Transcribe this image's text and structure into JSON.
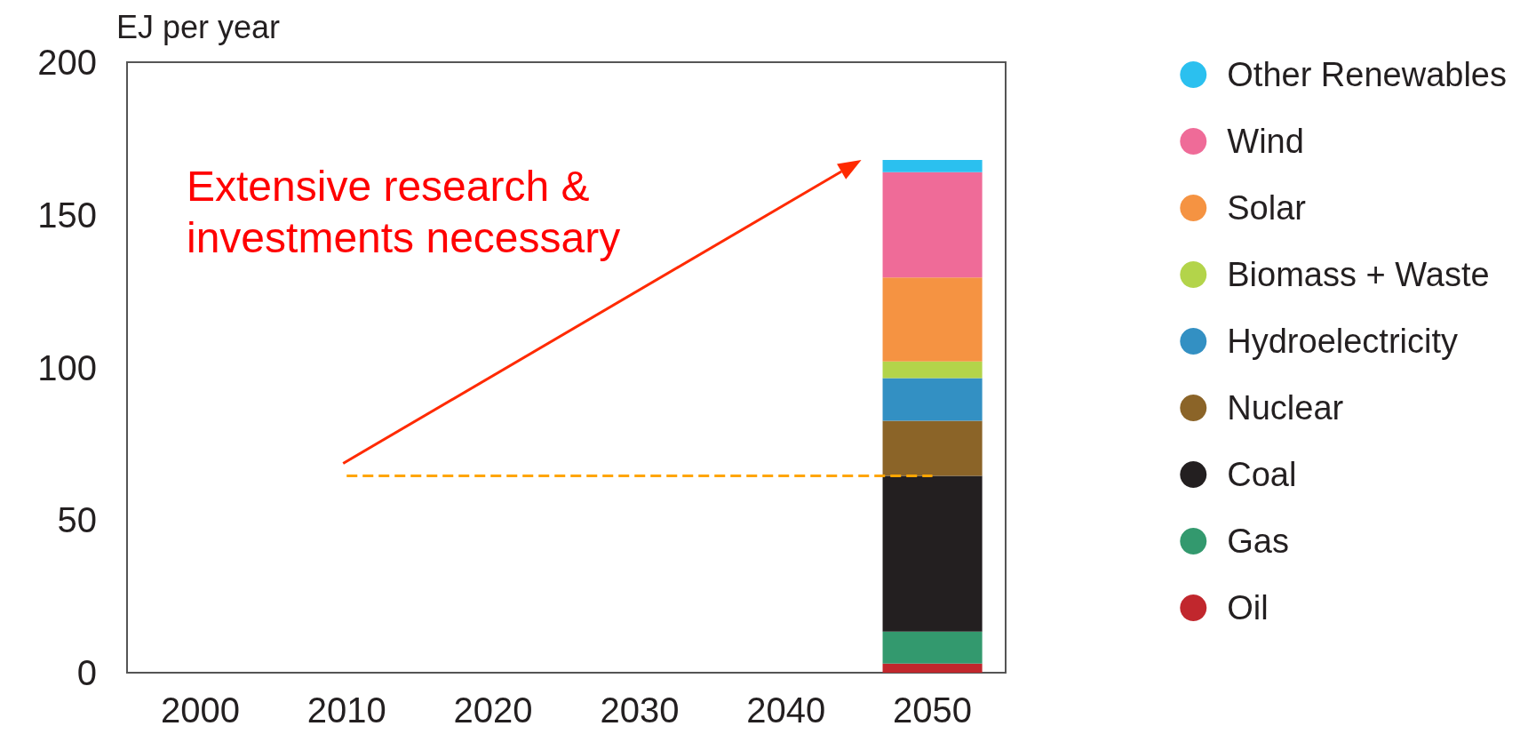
{
  "chart_data": {
    "type": "bar",
    "stacked": true,
    "ylabel": "EJ per year",
    "categories": [
      "2000",
      "2010",
      "2020",
      "2030",
      "2040",
      "2050"
    ],
    "series": [
      {
        "name": "Oil",
        "color": "#c1272d",
        "values": [
          0,
          0,
          0,
          0,
          0,
          3
        ]
      },
      {
        "name": "Gas",
        "color": "#33996e",
        "values": [
          0,
          0,
          0,
          0,
          0,
          10.5
        ]
      },
      {
        "name": "Coal",
        "color": "#231f20",
        "values": [
          0,
          0,
          0,
          0,
          0,
          51
        ]
      },
      {
        "name": "Nuclear",
        "color": "#8b6428",
        "values": [
          0,
          0,
          0,
          0,
          0,
          18
        ]
      },
      {
        "name": "Hydroelectricity",
        "color": "#3390c3",
        "values": [
          0,
          0,
          0,
          0,
          0,
          14
        ]
      },
      {
        "name": "Biomass + Waste",
        "color": "#b3d44a",
        "values": [
          0,
          0,
          0,
          0,
          0,
          5.5
        ]
      },
      {
        "name": "Solar",
        "color": "#f59342",
        "values": [
          0,
          0,
          0,
          0,
          0,
          27.5
        ]
      },
      {
        "name": "Wind",
        "color": "#ef6b98",
        "values": [
          0,
          0,
          0,
          0,
          0,
          34.5
        ]
      },
      {
        "name": "Other Renewables",
        "color": "#2bc0ef",
        "values": [
          0,
          0,
          0,
          0,
          0,
          4
        ]
      }
    ],
    "ylim": [
      0,
      200
    ],
    "yticks": [
      0,
      50,
      100,
      150,
      200
    ],
    "grid": false,
    "legend": "right",
    "ref_lines": [
      {
        "axis": "y",
        "value": 64.5,
        "color": "#ffa500",
        "line_style": "dashed"
      }
    ],
    "annotations": [
      "Extensive research & investments necessary"
    ]
  }
}
